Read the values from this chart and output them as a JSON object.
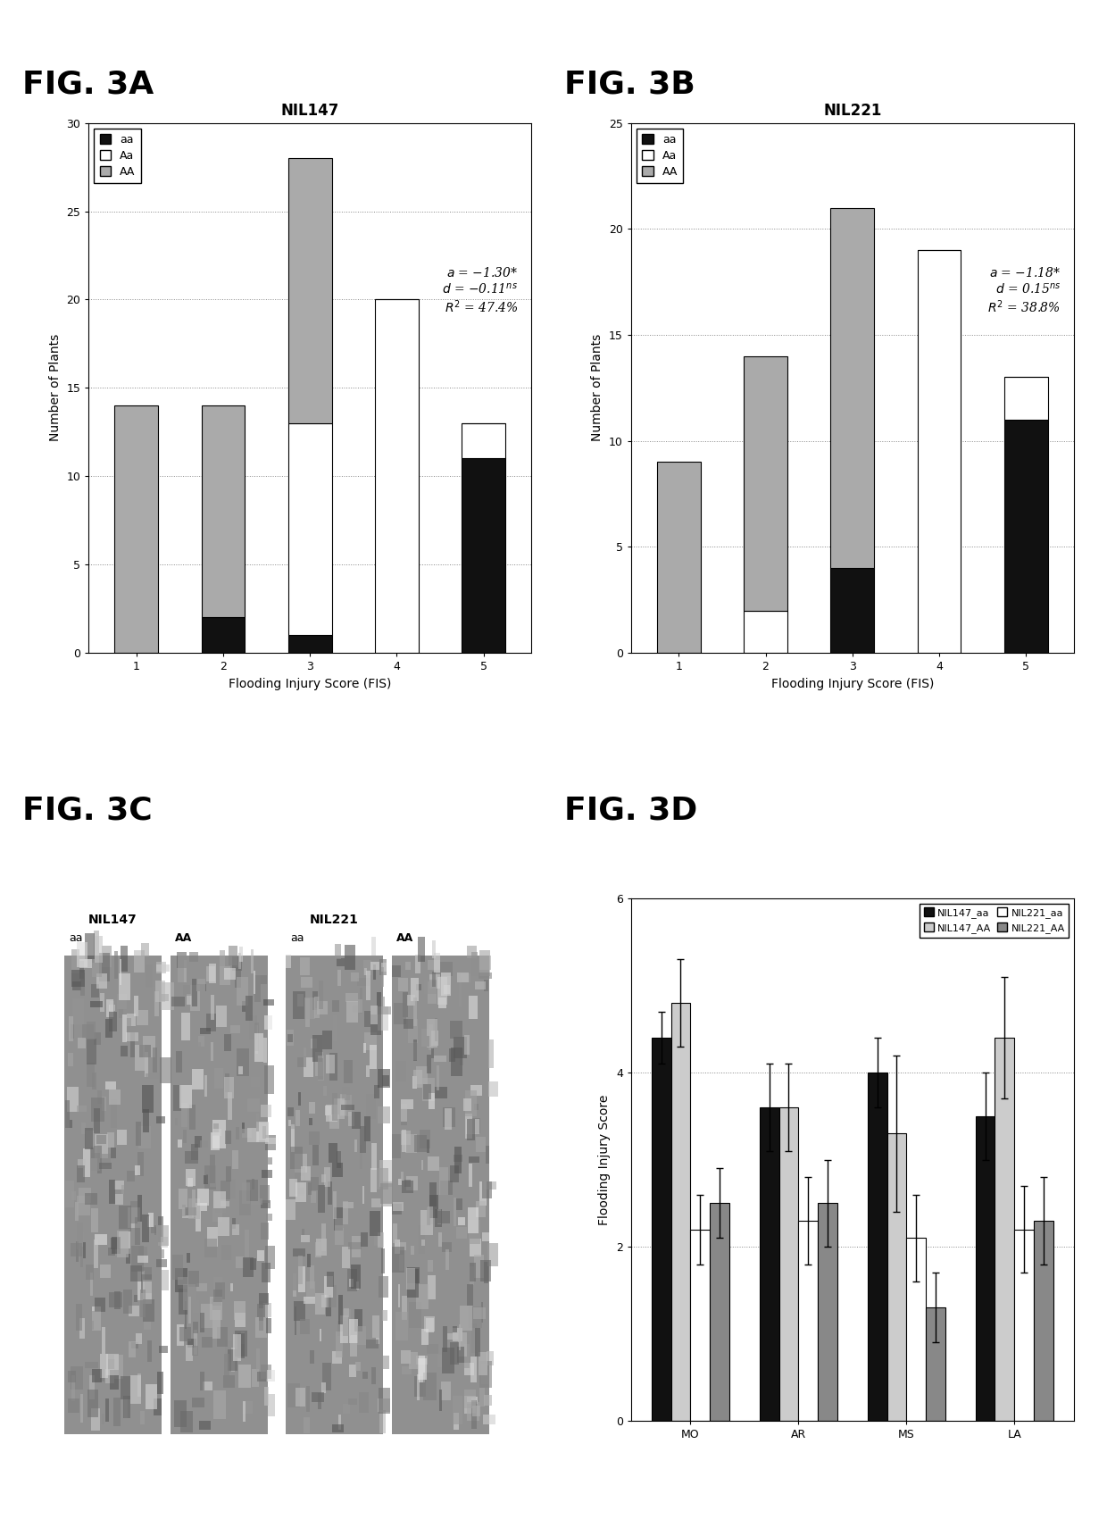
{
  "fig3A_title": "NIL147",
  "fig3A_xlabel": "Flooding Injury Score (FIS)",
  "fig3A_ylabel": "Number of Plants",
  "fig3A_ylim": [
    0,
    30
  ],
  "fig3A_yticks": [
    0,
    5,
    10,
    15,
    20,
    25,
    30
  ],
  "fig3A_fis": [
    1,
    2,
    3,
    4,
    5
  ],
  "fig3A_aa": [
    0,
    2,
    1,
    0,
    11
  ],
  "fig3A_Aa": [
    0,
    0,
    12,
    20,
    2
  ],
  "fig3A_AA": [
    14,
    12,
    15,
    0,
    0
  ],
  "fig3B_title": "NIL221",
  "fig3B_xlabel": "Flooding Injury Score (FIS)",
  "fig3B_ylabel": "Number of Plants",
  "fig3B_ylim": [
    0,
    25
  ],
  "fig3B_yticks": [
    0,
    5,
    10,
    15,
    20,
    25
  ],
  "fig3B_fis": [
    1,
    2,
    3,
    4,
    5
  ],
  "fig3B_aa": [
    0,
    0,
    4,
    0,
    11
  ],
  "fig3B_Aa": [
    0,
    2,
    0,
    19,
    2
  ],
  "fig3B_AA": [
    9,
    12,
    17,
    0,
    0
  ],
  "fig3D_categories": [
    "MO",
    "AR",
    "MS",
    "LA"
  ],
  "fig3D_NIL147_aa": [
    4.4,
    3.6,
    4.0,
    3.5
  ],
  "fig3D_NIL147_AA": [
    4.8,
    3.6,
    3.3,
    4.4
  ],
  "fig3D_NIL221_aa": [
    2.2,
    2.3,
    2.1,
    2.2
  ],
  "fig3D_NIL221_AA": [
    2.5,
    2.5,
    1.3,
    2.3
  ],
  "fig3D_NIL147_aa_err": [
    0.3,
    0.5,
    0.4,
    0.5
  ],
  "fig3D_NIL147_AA_err": [
    0.5,
    0.5,
    0.9,
    0.7
  ],
  "fig3D_NIL221_aa_err": [
    0.4,
    0.5,
    0.5,
    0.5
  ],
  "fig3D_NIL221_AA_err": [
    0.4,
    0.5,
    0.4,
    0.5
  ],
  "fig3D_ylabel": "Flooding Injury Score",
  "fig3D_ylim": [
    0,
    6
  ],
  "fig3D_yticks": [
    0,
    2,
    4,
    6
  ],
  "color_aa": "#111111",
  "color_Aa": "#ffffff",
  "color_AA": "#aaaaaa",
  "color_NIL147_aa": "#111111",
  "color_NIL147_AA": "#cccccc",
  "color_NIL221_aa": "#ffffff",
  "color_NIL221_AA": "#888888",
  "background_color": "#ffffff",
  "fig_label_fontsize": 26,
  "title_fontsize": 12,
  "axis_fontsize": 10,
  "tick_fontsize": 9,
  "annotation_fontsize": 10,
  "legend_fontsize": 9
}
